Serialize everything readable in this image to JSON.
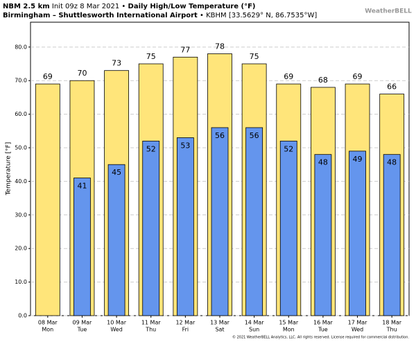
{
  "chart_data": {
    "type": "bar",
    "title_parts": [
      "NBM 2.5 km",
      "Init 09z 8 Mar 2021 •",
      "Daily High/Low Temperature (°F)"
    ],
    "subtitle_parts": [
      "Birmingham – Shuttlesworth International Airport",
      "• KBHM [33.5629° N, 86.7535°W]"
    ],
    "logo": "WeatherBELL",
    "footer": "© 2021 WeatherBELL Analytics, LLC. All rights reserved. License required for commercial distribution.",
    "y_label": "Temperature [°F]",
    "categories": [
      "08 Mar",
      "09 Mar",
      "10 Mar",
      "11 Mar",
      "12 Mar",
      "13 Mar",
      "14 Mar",
      "15 Mar",
      "16 Mar",
      "17 Mar",
      "18 Mar"
    ],
    "days": [
      "Mon",
      "Tue",
      "Wed",
      "Thu",
      "Fri",
      "Sat",
      "Sun",
      "Mon",
      "Tue",
      "Wed",
      "Thu"
    ],
    "series": [
      {
        "name": "High",
        "color": "#ffe57a",
        "values": [
          69,
          70,
          73,
          75,
          77,
          78,
          75,
          69,
          68,
          69,
          66
        ]
      },
      {
        "name": "Low",
        "color": "#6495ed",
        "values": [
          null,
          41,
          45,
          52,
          53,
          56,
          56,
          52,
          48,
          49,
          48
        ]
      }
    ],
    "ylim": [
      0,
      87.4
    ],
    "yticks": [
      {
        "value": 0,
        "label": "0.0"
      },
      {
        "value": 10,
        "label": "10.0"
      },
      {
        "value": 20,
        "label": "20.0"
      },
      {
        "value": 30,
        "label": "30.0"
      },
      {
        "value": 40,
        "label": "40.0"
      },
      {
        "value": 50,
        "label": "50.0"
      },
      {
        "value": 60,
        "label": "60.0"
      },
      {
        "value": 70,
        "label": "70.0"
      },
      {
        "value": 80,
        "label": "80.0"
      }
    ],
    "grid": true
  }
}
